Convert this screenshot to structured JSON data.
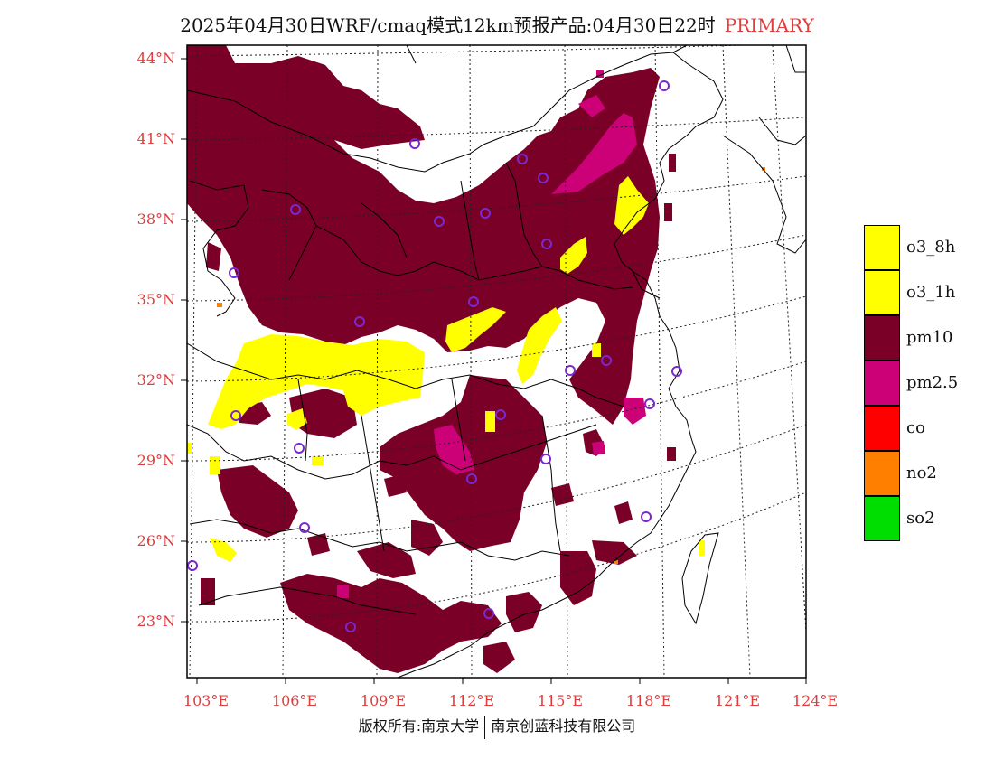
{
  "header": {
    "title": "2025年04月30日WRF/cmaq模式12km预报产品:04月30日22时",
    "pollutant_label": "PRIMARY"
  },
  "axes": {
    "lat_labels": [
      "44°N",
      "41°N",
      "38°N",
      "35°N",
      "32°N",
      "29°N",
      "26°N",
      "23°N"
    ],
    "lon_labels": [
      "103°E",
      "106°E",
      "109°E",
      "112°E",
      "115°E",
      "118°E",
      "121°E",
      "124°E"
    ]
  },
  "legend": {
    "items": [
      {
        "label": "o3_8h",
        "color": "#ffff00"
      },
      {
        "label": "o3_1h",
        "color": "#ffff00"
      },
      {
        "label": "pm10",
        "color": "#7a0028"
      },
      {
        "label": "pm2.5",
        "color": "#cc0077"
      },
      {
        "label": "co",
        "color": "#ff0000"
      },
      {
        "label": "no2",
        "color": "#ff7f00"
      },
      {
        "label": "so2",
        "color": "#00dd00"
      }
    ]
  },
  "colors": {
    "pm10": "#7a0028",
    "pm25": "#cc0077",
    "o3": "#ffff00",
    "no2": "#ff7f00",
    "station": "#7a28d0",
    "axis_text": "#e23b3b"
  },
  "footer": {
    "left": "版权所有:南京大学",
    "right": "南京创蓝科技有限公司"
  }
}
